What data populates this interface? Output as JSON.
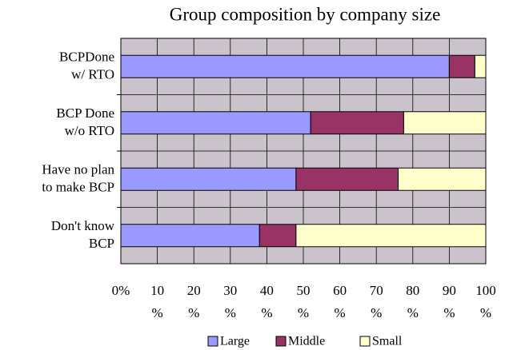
{
  "chart_data": {
    "type": "stacked_barh",
    "title": "Group composition by company size",
    "categories": [
      "BCPDone\nw/ RTO",
      "BCP Done\nw/o RTO",
      "Have no plan\nto make BCP",
      "Don't know\nBCP"
    ],
    "series": [
      {
        "name": "Large",
        "color": "#9999ff",
        "values": [
          90,
          52,
          48,
          38
        ]
      },
      {
        "name": "Middle",
        "color": "#993366",
        "values": [
          7,
          25.5,
          28,
          10
        ]
      },
      {
        "name": "Small",
        "color": "#ffffcc",
        "values": [
          3,
          22.5,
          24,
          52
        ]
      }
    ],
    "xlim": [
      0,
      100
    ],
    "xticks": [
      {
        "value": 0,
        "label": "0%"
      },
      {
        "value": 10,
        "label": "10\n%"
      },
      {
        "value": 20,
        "label": "20\n%"
      },
      {
        "value": 30,
        "label": "30\n%"
      },
      {
        "value": 40,
        "label": "40\n%"
      },
      {
        "value": 50,
        "label": "50\n%"
      },
      {
        "value": 60,
        "label": "60\n%"
      },
      {
        "value": 70,
        "label": "70\n%"
      },
      {
        "value": 80,
        "label": "80\n%"
      },
      {
        "value": 90,
        "label": "90\n%"
      },
      {
        "value": 100,
        "label": "100\n%"
      }
    ],
    "grid": true,
    "legend": "bottom"
  }
}
